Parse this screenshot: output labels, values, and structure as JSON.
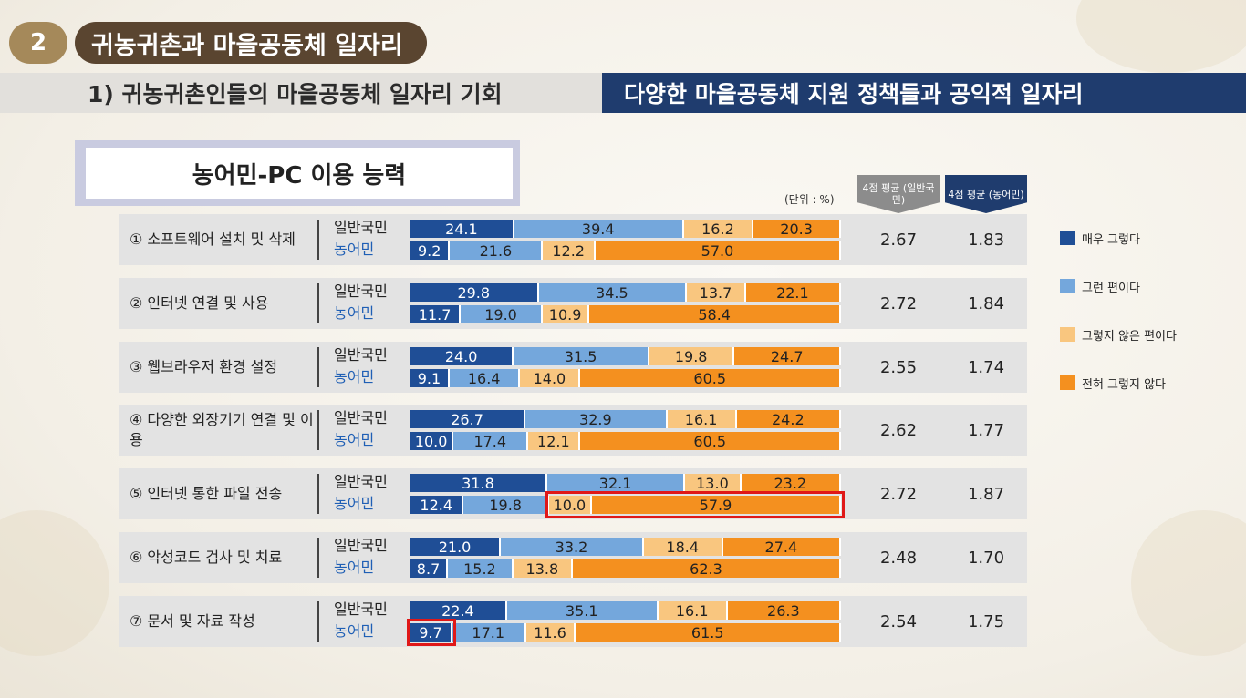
{
  "section": {
    "number": "2",
    "title": "귀농귀촌과 마을공동체 일자리"
  },
  "subtitle": {
    "left": "1) 귀농귀촌인들의 마을공동체 일자리 기회",
    "right": "다양한 마을공동체 지원 정책들과 공익적 일자리"
  },
  "colors": {
    "c1": "#1f4e96",
    "c2": "#74a7dc",
    "c3": "#f9c67f",
    "c4": "#f4901f"
  },
  "chart_data": {
    "type": "bar",
    "stacked": true,
    "orientation": "horizontal",
    "title": "농어민-PC 이용 능력",
    "unit_label": "(단위 : %)",
    "legend": [
      "매우 그렇다",
      "그런 편이다",
      "그렇지 않은 편이다",
      "전혀 그렇지 않다"
    ],
    "avg_headers": [
      "4점 평균 (일반국민)",
      "4점 평균 (농어민)"
    ],
    "group_labels": [
      "일반국민",
      "농어민"
    ],
    "items": [
      {
        "label": "① 소프트웨어 설치 및 삭제",
        "general": [
          24.1,
          39.4,
          16.2,
          20.3
        ],
        "farmer": [
          9.2,
          21.6,
          12.2,
          57.0
        ],
        "avg_general": "2.67",
        "avg_farmer": "1.83"
      },
      {
        "label": "② 인터넷 연결 및 사용",
        "general": [
          29.8,
          34.5,
          13.7,
          22.1
        ],
        "farmer": [
          11.7,
          19.0,
          10.9,
          58.4
        ],
        "avg_general": "2.72",
        "avg_farmer": "1.84"
      },
      {
        "label": "③ 웹브라우저 환경 설정",
        "general": [
          24.0,
          31.5,
          19.8,
          24.7
        ],
        "farmer": [
          9.1,
          16.4,
          14.0,
          60.5
        ],
        "avg_general": "2.55",
        "avg_farmer": "1.74"
      },
      {
        "label": "④ 다양한 외장기기 연결 및 이용",
        "general": [
          26.7,
          32.9,
          16.1,
          24.2
        ],
        "farmer": [
          10.0,
          17.4,
          12.1,
          60.5
        ],
        "avg_general": "2.62",
        "avg_farmer": "1.77"
      },
      {
        "label": "⑤ 인터넷 통한 파일 전송",
        "general": [
          31.8,
          32.1,
          13.0,
          23.2
        ],
        "farmer": [
          12.4,
          19.8,
          10.0,
          57.9
        ],
        "avg_general": "2.72",
        "avg_farmer": "1.87"
      },
      {
        "label": "⑥ 악성코드 검사 및 치료",
        "general": [
          21.0,
          33.2,
          18.4,
          27.4
        ],
        "farmer": [
          8.7,
          15.2,
          13.8,
          62.3
        ],
        "avg_general": "2.48",
        "avg_farmer": "1.70"
      },
      {
        "label": "⑦ 문서 및 자료 작성",
        "general": [
          22.4,
          35.1,
          16.1,
          26.3
        ],
        "farmer": [
          9.7,
          17.1,
          11.6,
          61.5
        ],
        "avg_general": "2.54",
        "avg_farmer": "1.75"
      }
    ],
    "highlights": [
      {
        "item": 5,
        "group": "farmer",
        "segments": [
          3,
          4
        ]
      },
      {
        "item": 7,
        "group": "farmer",
        "segments": [
          1
        ]
      }
    ]
  }
}
